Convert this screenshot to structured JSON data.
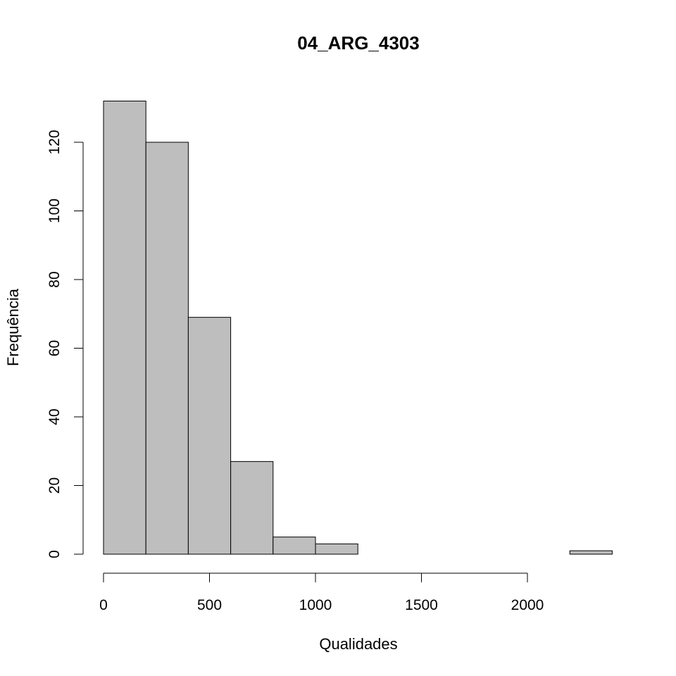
{
  "chart_data": {
    "type": "bar",
    "histogram": true,
    "title": "04_ARG_4303",
    "xlabel": "Qualidades",
    "ylabel": "Frequência",
    "bins": [
      {
        "start": 0,
        "end": 200,
        "count": 132
      },
      {
        "start": 200,
        "end": 400,
        "count": 120
      },
      {
        "start": 400,
        "end": 600,
        "count": 69
      },
      {
        "start": 600,
        "end": 800,
        "count": 27
      },
      {
        "start": 800,
        "end": 1000,
        "count": 5
      },
      {
        "start": 1000,
        "end": 1200,
        "count": 3
      },
      {
        "start": 1200,
        "end": 1400,
        "count": 0
      },
      {
        "start": 1400,
        "end": 1600,
        "count": 0
      },
      {
        "start": 1600,
        "end": 1800,
        "count": 0
      },
      {
        "start": 1800,
        "end": 2000,
        "count": 0
      },
      {
        "start": 2000,
        "end": 2200,
        "count": 0
      },
      {
        "start": 2200,
        "end": 2400,
        "count": 1
      }
    ],
    "xticks": [
      0,
      500,
      1000,
      1500,
      2000
    ],
    "yticks": [
      0,
      20,
      40,
      60,
      80,
      100,
      120
    ],
    "bar_color": "#bebebe",
    "grid": false
  }
}
